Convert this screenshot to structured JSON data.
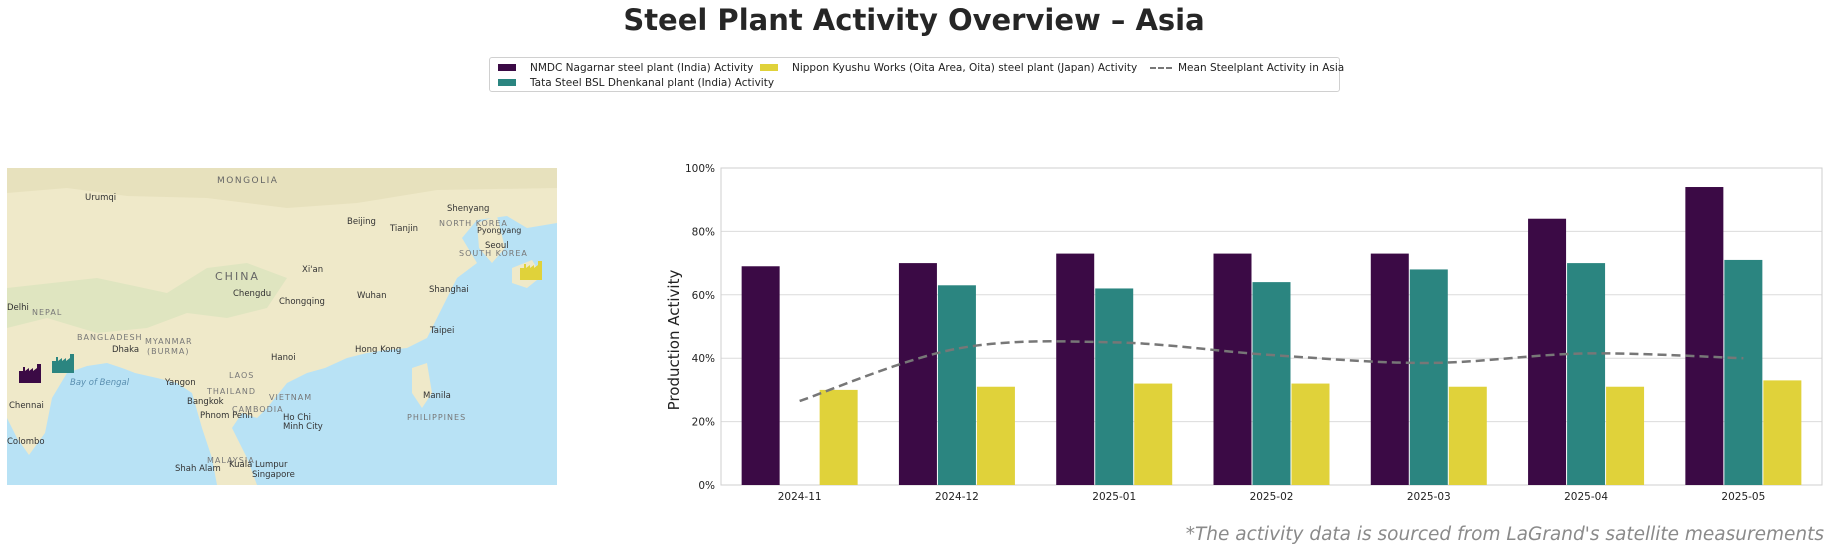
{
  "title": "Steel Plant Activity Overview – Asia",
  "legend": {
    "items": [
      {
        "label": "NMDC Nagarnar steel plant (India) Activity",
        "color": "#3b0a45"
      },
      {
        "label": "Tata Steel BSL Dhenkanal plant (India) Activity",
        "color": "#2b8580"
      },
      {
        "label": "Nippon Kyushu Works (Oita Area, Oita) steel plant (Japan) Activity",
        "color": "#e0d23a"
      },
      {
        "label": "Mean Steelplant Activity in Asia",
        "color": "#777777"
      }
    ]
  },
  "map": {
    "labels": {
      "mongolia": "MONGOLIA",
      "urumqi": "Urumqi",
      "beijing": "Beijing",
      "tianjin": "Tianjin",
      "shenyang": "Shenyang",
      "north_korea": "NORTH KOREA",
      "pyongyang": "Pyongyang",
      "seoul": "Seoul",
      "south_korea": "SOUTH KOREA",
      "china": "CHINA",
      "xian": "Xi'an",
      "chengdu": "Chengdu",
      "chongqing": "Chongqing",
      "wuhan": "Wuhan",
      "shanghai": "Shanghai",
      "delhi": "Delhi",
      "nepal": "NEPAL",
      "bangladesh": "BANGLADESH",
      "myanmar": "MYANMAR",
      "burma": "(BURMA)",
      "dhaka": "Dhaka",
      "hong_kong": "Hong Kong",
      "taipei": "Taipei",
      "hanoi": "Hanoi",
      "laos": "LAOS",
      "bay_of_bengal": "Bay of Bengal",
      "yangon": "Yangon",
      "thailand": "THAILAND",
      "vietnam": "VIETNAM",
      "bangkok": "Bangkok",
      "manila": "Manila",
      "chennai": "Chennai",
      "cambodia": "CAMBODIA",
      "phnom_penh": "Phnom Penh",
      "ho_chi": "Ho Chi",
      "minh_city": "Minh City",
      "philippines": "PHILIPPINES",
      "colombo": "Colombo",
      "malaysia": "MALAYSIA",
      "shah_alam": "Shah Alam",
      "kuala_lumpur": "Kuala Lumpur",
      "singapore": "Singapore"
    },
    "markers": [
      {
        "plant": "NMDC Nagarnar steel plant (India)",
        "icon": "factory-icon",
        "color": "#3b0a45"
      },
      {
        "plant": "Tata Steel BSL Dhenkanal plant (India)",
        "icon": "factory-icon",
        "color": "#2b8580"
      },
      {
        "plant": "Nippon Kyushu Works (Oita Area, Oita) steel plant (Japan)",
        "icon": "factory-icon",
        "color": "#e0d23a"
      }
    ]
  },
  "chart_data": {
    "type": "bar",
    "categories": [
      "2024-11",
      "2024-12",
      "2025-01",
      "2025-02",
      "2025-03",
      "2025-04",
      "2025-05"
    ],
    "series": [
      {
        "name": "NMDC Nagarnar steel plant (India) Activity",
        "color": "#3b0a45",
        "values": [
          69,
          70,
          73,
          73,
          73,
          84,
          94
        ]
      },
      {
        "name": "Tata Steel BSL Dhenkanal plant (India) Activity",
        "color": "#2b8580",
        "values": [
          null,
          63,
          62,
          64,
          68,
          70,
          71
        ]
      },
      {
        "name": "Nippon Kyushu Works (Oita Area, Oita) steel plant (Japan) Activity",
        "color": "#e0d23a",
        "values": [
          30,
          31,
          32,
          32,
          31,
          31,
          33
        ]
      }
    ],
    "mean_line": {
      "name": "Mean Steelplant Activity in Asia",
      "color": "#777777",
      "style": "dashed",
      "values": [
        26.5,
        43,
        45,
        41,
        38.5,
        41.5,
        40
      ]
    },
    "ylabel": "Production Activity",
    "ylim": [
      0,
      100
    ],
    "yticks": [
      0,
      20,
      40,
      60,
      80,
      100
    ],
    "ytick_labels": [
      "0%",
      "20%",
      "40%",
      "60%",
      "80%",
      "100%"
    ],
    "grid": "horizontal",
    "legend_position": "top-center"
  },
  "footnote": "*The activity data is sourced from LaGrand's satellite measurements"
}
